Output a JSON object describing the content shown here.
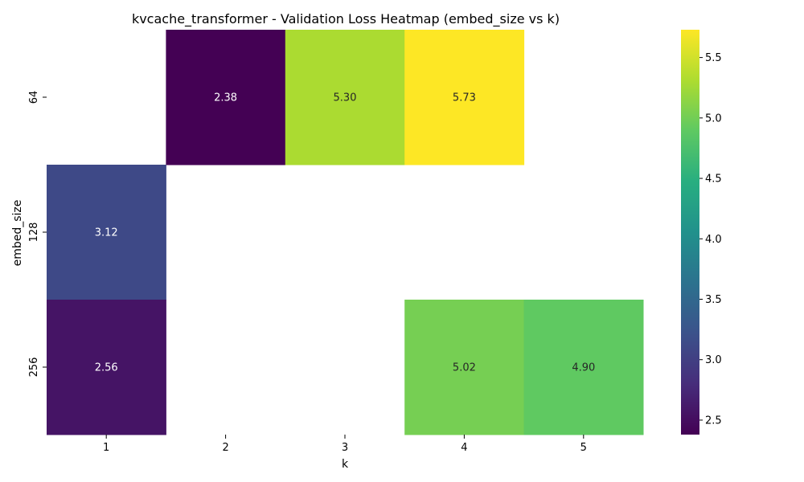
{
  "chart_data": {
    "type": "heatmap",
    "title": "kvcache_transformer - Validation Loss Heatmap (embed_size vs k)",
    "xlabel": "k",
    "ylabel": "embed_size",
    "x_categories": [
      "1",
      "2",
      "3",
      "4",
      "5"
    ],
    "y_categories": [
      "64",
      "128",
      "256"
    ],
    "cells": [
      {
        "y": "64",
        "x": "2",
        "value": 2.38,
        "label": "2.38"
      },
      {
        "y": "64",
        "x": "3",
        "value": 5.3,
        "label": "5.30"
      },
      {
        "y": "64",
        "x": "4",
        "value": 5.73,
        "label": "5.73"
      },
      {
        "y": "128",
        "x": "1",
        "value": 3.12,
        "label": "3.12"
      },
      {
        "y": "256",
        "x": "1",
        "value": 2.56,
        "label": "2.56"
      },
      {
        "y": "256",
        "x": "4",
        "value": 5.02,
        "label": "5.02"
      },
      {
        "y": "256",
        "x": "5",
        "value": 4.9,
        "label": "4.90"
      }
    ],
    "colorbar": {
      "colormap": "viridis",
      "min": 2.38,
      "max": 5.73,
      "ticks": [
        "2.5",
        "3.0",
        "3.5",
        "4.0",
        "4.5",
        "5.0",
        "5.5"
      ]
    },
    "grid": false
  }
}
